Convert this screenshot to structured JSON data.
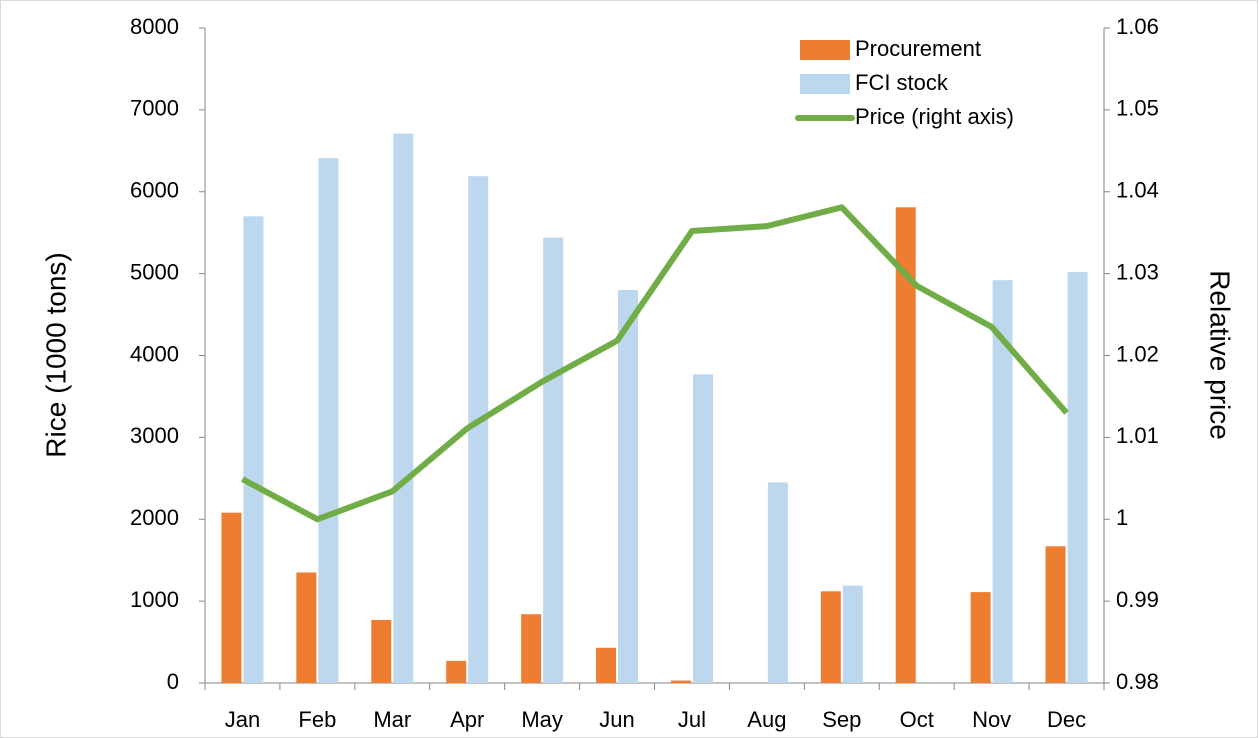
{
  "chart_data": {
    "type": "bar",
    "ylabel": "Rice (1000 tons)",
    "y2label": "Relative price",
    "categories": [
      "Jan",
      "Feb",
      "Mar",
      "Apr",
      "May",
      "Jun",
      "Jul",
      "Aug",
      "Sep",
      "Oct",
      "Nov",
      "Dec"
    ],
    "series": [
      {
        "name": "Procurement",
        "type": "bar",
        "color": "#ed7d31",
        "values": [
          2080,
          1350,
          770,
          270,
          840,
          430,
          30,
          null,
          1120,
          5810,
          1110,
          1670
        ]
      },
      {
        "name": "FCI stock",
        "type": "bar",
        "color": "#bdd7ee",
        "values": [
          5700,
          6410,
          6710,
          6190,
          5440,
          4800,
          3770,
          2450,
          1190,
          null,
          4920,
          5020
        ]
      },
      {
        "name": "Price (right axis)",
        "type": "line",
        "axis": "y2",
        "color": "#70ad47",
        "values": [
          1.0049,
          1.0,
          1.0034,
          1.0111,
          1.0168,
          1.0218,
          1.0352,
          1.0358,
          1.0381,
          1.0285,
          1.0235,
          1.013
        ]
      }
    ],
    "ylim": [
      0,
      8000
    ],
    "yticks": [
      0,
      1000,
      2000,
      3000,
      4000,
      5000,
      6000,
      7000,
      8000
    ],
    "y2lim": [
      0.98,
      1.06
    ],
    "y2ticks": [
      0.98,
      0.99,
      1,
      1.01,
      1.02,
      1.03,
      1.04,
      1.05,
      1.06
    ],
    "grid": false,
    "legend": "upper right"
  }
}
